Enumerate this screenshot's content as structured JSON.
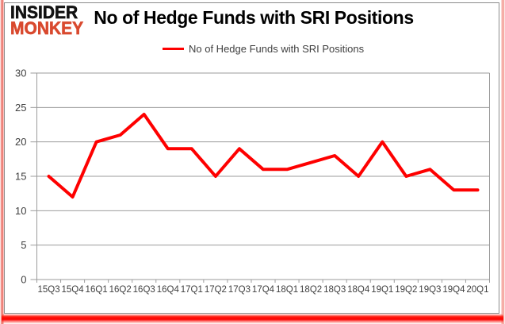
{
  "logo": {
    "line1": "INSIDER",
    "line2": "MONKEY"
  },
  "header": {
    "title": "No of Hedge Funds with SRI Positions"
  },
  "legend": {
    "label": "No of Hedge Funds with SRI Positions"
  },
  "colors": {
    "series_line": "#fe0000",
    "gridline": "#9b9b9b",
    "axis_text": "#3f3f3f",
    "logo_black": "#121212",
    "logo_red": "#d9492e",
    "frame_border": "#8c8c8c",
    "outer_frame_red": "#fb0202"
  },
  "chart_data": {
    "type": "line",
    "title": "No of Hedge Funds with SRI Positions",
    "categories": [
      "15Q3",
      "15Q4",
      "16Q1",
      "16Q2",
      "16Q3",
      "16Q4",
      "17Q1",
      "17Q2",
      "17Q3",
      "17Q4",
      "18Q1",
      "18Q2",
      "18Q3",
      "18Q4",
      "19Q1",
      "19Q2",
      "19Q3",
      "19Q4",
      "20Q1"
    ],
    "values": [
      15,
      12,
      20,
      21,
      24,
      19,
      19,
      15,
      19,
      16,
      16,
      17,
      18,
      15,
      20,
      15,
      16,
      13,
      13
    ],
    "series": [
      {
        "name": "No of Hedge Funds with SRI Positions",
        "values": [
          15,
          12,
          20,
          21,
          24,
          19,
          19,
          15,
          19,
          16,
          16,
          17,
          18,
          15,
          20,
          15,
          16,
          13,
          13
        ]
      }
    ],
    "xlabel": "",
    "ylabel": "",
    "ylim": [
      0,
      30
    ],
    "yticks": [
      0,
      5,
      10,
      15,
      20,
      25,
      30
    ],
    "grid": true,
    "legend_position": "top"
  }
}
